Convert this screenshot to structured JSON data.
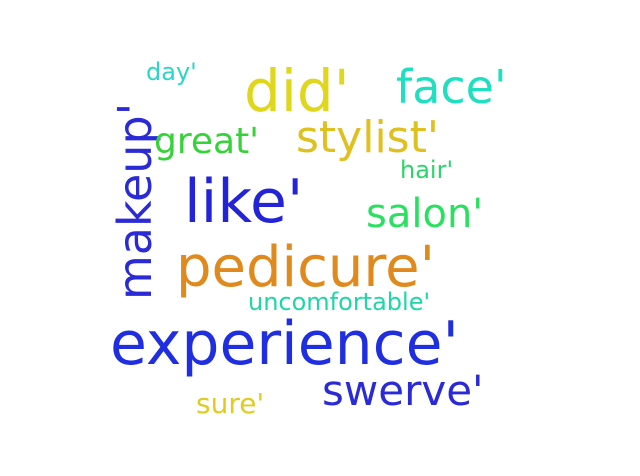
{
  "words": [
    {
      "text": "experience'",
      "color": "#1f2ee0"
    },
    {
      "text": "pedicure'",
      "color": "#e08a1e"
    },
    {
      "text": "makeup'",
      "color": "#2a2ad6"
    },
    {
      "text": "like'",
      "color": "#2323d8"
    },
    {
      "text": "did'",
      "color": "#e0d61c"
    },
    {
      "text": "face'",
      "color": "#1ee0c0"
    },
    {
      "text": "stylist'",
      "color": "#e0c01e"
    },
    {
      "text": "swerve'",
      "color": "#2a2ad6"
    },
    {
      "text": "salon'",
      "color": "#2ae060"
    },
    {
      "text": "great'",
      "color": "#36d23a"
    },
    {
      "text": "hair'",
      "color": "#2ad66a"
    },
    {
      "text": "day'",
      "color": "#2ad6c6"
    },
    {
      "text": "uncomfortable'",
      "color": "#1ed6a6"
    },
    {
      "text": "sure'",
      "color": "#e0cc1e"
    }
  ]
}
